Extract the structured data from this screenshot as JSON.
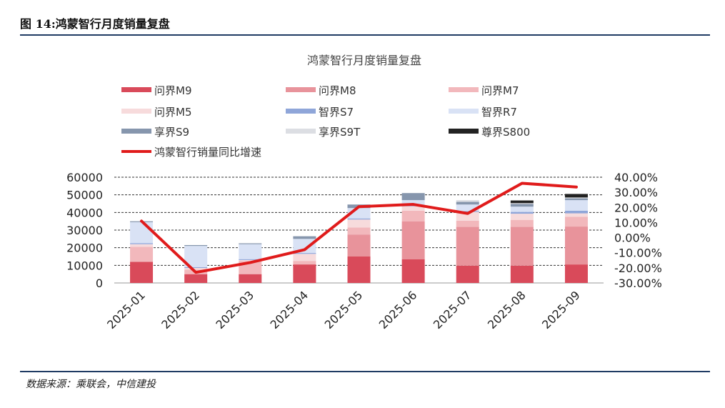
{
  "figure": {
    "title": "图 14:鸿蒙智行月度销量复盘",
    "source": "数据来源：乘联会，中信建投"
  },
  "chart_data": {
    "type": "bar",
    "stacked": true,
    "title": "鸿蒙智行月度销量复盘",
    "categories": [
      "2025-01",
      "2025-02",
      "2025-03",
      "2025-04",
      "2025-05",
      "2025-06",
      "2025-07",
      "2025-08",
      "2025-09"
    ],
    "ylim": [
      0,
      60000
    ],
    "yticks": [
      "0",
      "10000",
      "20000",
      "30000",
      "40000",
      "50000",
      "60000"
    ],
    "y2lim": [
      -0.3,
      0.4
    ],
    "y2ticks": [
      "-30.00%",
      "-20.00%",
      "-10.00%",
      "0.00%",
      "10.00%",
      "20.00%",
      "30.00%",
      "40.00%"
    ],
    "series": [
      {
        "name": "问界M9",
        "color": "#d94a5a",
        "values": [
          12000,
          5000,
          5000,
          10500,
          15000,
          13500,
          9800,
          9800,
          10500
        ]
      },
      {
        "name": "问界M8",
        "color": "#e8939b",
        "values": [
          0,
          0,
          0,
          0,
          12500,
          21500,
          22000,
          22000,
          21500
        ]
      },
      {
        "name": "问界M7",
        "color": "#f2b8bc",
        "values": [
          8500,
          2500,
          7500,
          2000,
          4000,
          6000,
          3500,
          4000,
          5500
        ]
      },
      {
        "name": "问界M5",
        "color": "#f7dbdc",
        "values": [
          1500,
          1000,
          500,
          4000,
          4500,
          2500,
          5000,
          3500,
          2000
        ]
      },
      {
        "name": "智界S7",
        "color": "#8fa6d9",
        "values": [
          600,
          500,
          500,
          500,
          600,
          500,
          500,
          1000,
          1500
        ]
      },
      {
        "name": "智界R7",
        "color": "#d9e2f5",
        "values": [
          11900,
          12000,
          8500,
          8000,
          5900,
          3000,
          3700,
          3000,
          6000
        ]
      },
      {
        "name": "享界S9",
        "color": "#8696ad",
        "values": [
          500,
          500,
          500,
          1500,
          2000,
          4000,
          1500,
          1500,
          1000
        ]
      },
      {
        "name": "享界S9T",
        "color": "#dcdee3",
        "values": [
          0,
          0,
          0,
          0,
          0,
          0,
          1000,
          500,
          500
        ]
      },
      {
        "name": "尊界S800",
        "color": "#222222",
        "values": [
          0,
          0,
          0,
          0,
          0,
          0,
          0,
          1500,
          2000
        ]
      }
    ],
    "line_series": {
      "name": "鸿蒙智行销量同比增速",
      "color": "#e01b1b",
      "axis": "right",
      "values": [
        0.11,
        -0.23,
        -0.165,
        -0.08,
        0.205,
        0.22,
        0.16,
        0.36,
        0.335
      ]
    }
  }
}
